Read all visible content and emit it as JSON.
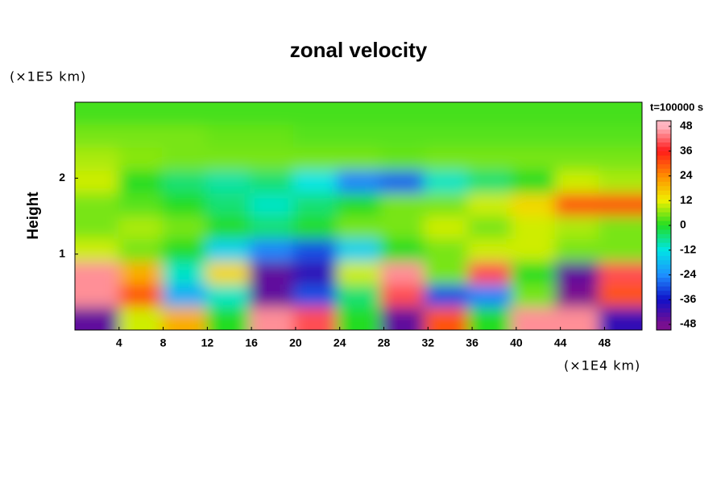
{
  "chart_data": {
    "type": "heatmap",
    "title": "zonal velocity",
    "ylabel": "Height",
    "y_unit_label": "(×1E5 km)",
    "x_unit_label": "(×1E4 km)",
    "colorbar_label": "t=100000 s",
    "xlim": [
      0,
      51.4
    ],
    "ylim": [
      0,
      3
    ],
    "xticks": [
      4,
      8,
      12,
      16,
      20,
      24,
      28,
      32,
      36,
      40,
      44,
      48
    ],
    "yticks": [
      1,
      2
    ],
    "zlim": [
      -48,
      48
    ],
    "zticks": [
      48,
      36,
      24,
      12,
      0,
      -12,
      -24,
      -36,
      -48
    ],
    "colormap": [
      "#7a0f8f",
      "#1010c8",
      "#1e90ff",
      "#00e5e5",
      "#22dd22",
      "#f0f000",
      "#ff8c00",
      "#ff1a1a",
      "#ffb6c1"
    ],
    "x": [
      1.98,
      5.93,
      9.88,
      13.84,
      17.79,
      21.74,
      25.7,
      29.65,
      33.61,
      37.56,
      41.51,
      45.47,
      49.42
    ],
    "y": [
      2.85,
      2.55,
      2.25,
      1.95,
      1.65,
      1.35,
      1.05,
      0.75,
      0.45,
      0.15
    ],
    "z": [
      [
        2,
        2,
        2,
        2,
        2,
        2,
        2,
        2,
        2,
        2,
        2,
        2,
        2
      ],
      [
        5,
        5,
        5,
        4,
        4,
        3,
        3,
        3,
        3,
        3,
        3,
        3,
        3
      ],
      [
        8,
        6,
        5,
        5,
        5,
        5,
        5,
        4,
        5,
        5,
        5,
        5,
        5
      ],
      [
        10,
        0,
        -5,
        -8,
        -5,
        -12,
        -25,
        -28,
        -10,
        -5,
        0,
        10,
        8
      ],
      [
        5,
        3,
        0,
        -5,
        -10,
        -5,
        0,
        5,
        5,
        10,
        15,
        30,
        30
      ],
      [
        5,
        8,
        5,
        0,
        -5,
        0,
        5,
        5,
        10,
        5,
        10,
        8,
        5
      ],
      [
        10,
        5,
        0,
        -15,
        -25,
        -30,
        -15,
        0,
        5,
        10,
        10,
        5,
        5
      ],
      [
        45,
        20,
        -10,
        15,
        -45,
        -40,
        10,
        45,
        5,
        40,
        0,
        -45,
        40
      ],
      [
        45,
        30,
        -20,
        -10,
        -45,
        -30,
        -5,
        40,
        -30,
        -25,
        5,
        -48,
        30
      ],
      [
        -45,
        10,
        20,
        0,
        45,
        40,
        0,
        -45,
        30,
        0,
        45,
        45,
        -40
      ]
    ]
  }
}
